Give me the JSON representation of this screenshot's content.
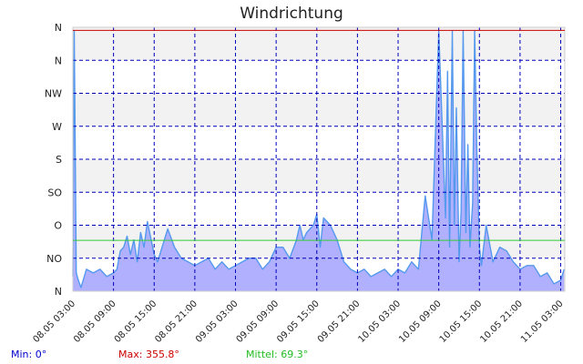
{
  "chart_data": {
    "type": "area",
    "title": "Windrichtung",
    "xlabel": "",
    "ylabel": "",
    "y_tick_labels": [
      "N",
      "NO",
      "O",
      "SO",
      "S",
      "W",
      "NW",
      "N",
      "N"
    ],
    "y_tick_values": [
      0,
      45,
      90,
      135,
      180,
      225,
      270,
      315,
      360
    ],
    "ylim": [
      0,
      360
    ],
    "x_tick_labels": [
      "08.05 03:00",
      "08.05 09:00",
      "08.05 15:00",
      "08.05 21:00",
      "09.05 03:00",
      "09.05 09:00",
      "09.05 15:00",
      "09.05 21:00",
      "10.05 03:00",
      "10.05 09:00",
      "10.05 15:00",
      "10.05 21:00",
      "11.05 03:00"
    ],
    "grid": true,
    "colors": {
      "line": "#5599ee",
      "fill": "#b0b0ff",
      "max_line": "#cc0000",
      "mean_line": "#33cc33",
      "grid": "#0000bb",
      "band": "#f2f2f2"
    },
    "series": [
      {
        "x": [
          0,
          0.2,
          0.5,
          0.8,
          1.2,
          2,
          3,
          4,
          5,
          6,
          6.5,
          7,
          7.5,
          8,
          8.5,
          9,
          9.5,
          10,
          10.5,
          11,
          12,
          12.5,
          13,
          14,
          15,
          16,
          17,
          18,
          19,
          20,
          21,
          22,
          23,
          24,
          25,
          26,
          27,
          28,
          29,
          30,
          31,
          32,
          33,
          33.5,
          34,
          34.5,
          35,
          35.5,
          36,
          36.5,
          37,
          37.5,
          38,
          39,
          40,
          41,
          42,
          43,
          44,
          45,
          46,
          47,
          48,
          49,
          50,
          51,
          52,
          53,
          54,
          55,
          55.3,
          55.6,
          56,
          56.3,
          56.6,
          57,
          57.3,
          57.6,
          58,
          58.3,
          58.6,
          59,
          59.3,
          59.6,
          60,
          60.3,
          61,
          62,
          63,
          64,
          65,
          66,
          67,
          68,
          69,
          70,
          71,
          72,
          72.5
        ],
        "y": [
          20,
          355,
          25,
          15,
          5,
          30,
          25,
          30,
          20,
          25,
          30,
          55,
          60,
          75,
          50,
          70,
          40,
          80,
          60,
          95,
          50,
          40,
          55,
          85,
          60,
          45,
          40,
          35,
          40,
          45,
          30,
          40,
          30,
          35,
          40,
          45,
          45,
          30,
          40,
          60,
          60,
          45,
          70,
          90,
          70,
          80,
          85,
          90,
          105,
          60,
          100,
          95,
          90,
          70,
          40,
          30,
          25,
          30,
          20,
          25,
          30,
          20,
          30,
          25,
          40,
          30,
          130,
          70,
          355,
          100,
          300,
          60,
          355,
          90,
          250,
          40,
          110,
          355,
          80,
          200,
          60,
          120,
          355,
          200,
          60,
          35,
          90,
          40,
          60,
          55,
          40,
          30,
          35,
          35,
          20,
          25,
          10,
          15,
          30
        ]
      }
    ],
    "reference_lines": [
      {
        "label": "Max",
        "value": 355.8,
        "color": "#cc0000"
      },
      {
        "label": "Mittel",
        "value": 69.3,
        "color": "#33cc33"
      }
    ]
  },
  "legend": {
    "min": "Min: 0°",
    "max": "Max: 355.8°",
    "mean": "Mittel: 69.3°"
  }
}
